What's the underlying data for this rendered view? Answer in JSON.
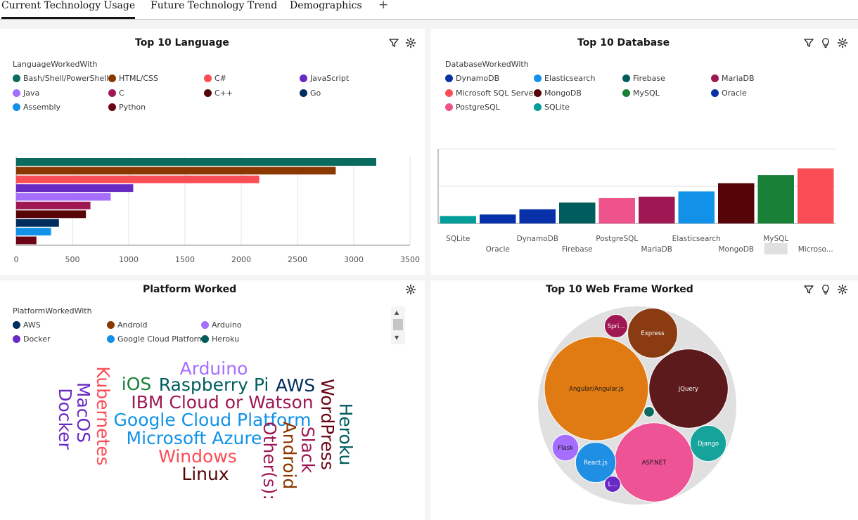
{
  "tabs": [
    {
      "label": "Current Technology Usage",
      "active": true
    },
    {
      "label": "Future Technology Trend",
      "active": false
    },
    {
      "label": "Demographics",
      "active": false
    }
  ],
  "add_tab_label": "+",
  "panels": {
    "language": {
      "title": "Top 10 Language",
      "legend_title": "LanguageWorkedWith",
      "icons": [
        "filter-icon",
        "settings-icon"
      ]
    },
    "database": {
      "title": "Top 10  Database",
      "legend_title": "DatabaseWorkedWith",
      "icons": [
        "filter-icon",
        "lightbulb-icon",
        "settings-icon"
      ]
    },
    "platform": {
      "title": "Platform Worked",
      "legend_title": "PlatformWorkedWith",
      "icons": [
        "settings-icon"
      ]
    },
    "webframe": {
      "title": "Top 10 Web Frame Worked",
      "icons": [
        "filter-icon",
        "lightbulb-icon",
        "settings-icon"
      ]
    }
  },
  "legends": {
    "language": [
      {
        "label": "Bash/Shell/PowerShell",
        "color": "#0b6b5e"
      },
      {
        "label": "HTML/CSS",
        "color": "#8a3800"
      },
      {
        "label": "C#",
        "color": "#fa4d56"
      },
      {
        "label": "JavaScript",
        "color": "#6929c4"
      },
      {
        "label": "Java",
        "color": "#a56eff"
      },
      {
        "label": "C",
        "color": "#9f1853"
      },
      {
        "label": "C++",
        "color": "#570408"
      },
      {
        "label": "Go",
        "color": "#002d5c"
      },
      {
        "label": "Assembly",
        "color": "#1192e8"
      },
      {
        "label": "Python",
        "color": "#6b0516"
      }
    ],
    "database": [
      {
        "label": "DynamoDB",
        "color": "#0830a8"
      },
      {
        "label": "Elasticsearch",
        "color": "#1192e8"
      },
      {
        "label": "Firebase",
        "color": "#005d5d"
      },
      {
        "label": "MariaDB",
        "color": "#9f1853"
      },
      {
        "label": "Microsoft SQL Server",
        "color": "#fa4d56"
      },
      {
        "label": "MongoDB",
        "color": "#570408"
      },
      {
        "label": "MySQL",
        "color": "#198038"
      },
      {
        "label": "Oracle",
        "color": "#0830a8"
      },
      {
        "label": "PostgreSQL",
        "color": "#ee538b"
      },
      {
        "label": "SQLite",
        "color": "#009d9a"
      }
    ],
    "platform": [
      {
        "label": "AWS",
        "color": "#002d5c"
      },
      {
        "label": "Android",
        "color": "#8a3800"
      },
      {
        "label": "Arduino",
        "color": "#a56eff"
      },
      {
        "label": "Docker",
        "color": "#6929c4"
      },
      {
        "label": "Google Cloud Platform",
        "color": "#1192e8"
      },
      {
        "label": "Heroku",
        "color": "#005d5d"
      }
    ]
  },
  "chart_data": [
    {
      "type": "bar",
      "orientation": "horizontal",
      "id": "language",
      "categories": [
        "Bash/Shell/PowerShell",
        "HTML/CSS",
        "C#",
        "JavaScript",
        "Java",
        "C",
        "C++",
        "Go",
        "Assembly",
        "Python"
      ],
      "values": [
        3200,
        2840,
        2160,
        1040,
        840,
        660,
        620,
        380,
        310,
        180
      ],
      "colors": [
        "#0b6b5e",
        "#8a3800",
        "#fa4d56",
        "#6929c4",
        "#a56eff",
        "#9f1853",
        "#570408",
        "#002d5c",
        "#1192e8",
        "#6b0516"
      ],
      "xlim": [
        0,
        3500
      ],
      "xticks": [
        "0",
        "500",
        "1000",
        "1500",
        "2000",
        "2500",
        "3000",
        "3500"
      ],
      "grid": true
    },
    {
      "type": "bar",
      "id": "database",
      "categories": [
        "SQLite",
        "Oracle",
        "DynamoDB",
        "Firebase",
        "PostgreSQL",
        "MariaDB",
        "Elasticsearch",
        "MongoDB",
        "MySQL",
        "Microso..."
      ],
      "values": [
        10,
        12,
        19,
        28,
        34,
        36,
        43,
        54,
        65,
        74
      ],
      "colors": [
        "#009d9a",
        "#0830a8",
        "#0830a8",
        "#005d5d",
        "#ee538b",
        "#9f1853",
        "#1192e8",
        "#570408",
        "#198038",
        "#fa4d56"
      ],
      "ylim": [
        0,
        100
      ],
      "grid": true
    },
    {
      "type": "wordcloud",
      "id": "platform",
      "words": [
        {
          "text": "Arduino",
          "color": "#a56eff"
        },
        {
          "text": "iOS",
          "color": "#198038"
        },
        {
          "text": "Raspberry Pi",
          "color": "#005d5d"
        },
        {
          "text": "AWS",
          "color": "#002d5c"
        },
        {
          "text": "IBM Cloud or Watson",
          "color": "#9f1853"
        },
        {
          "text": "Google Cloud Platform",
          "color": "#1192e8"
        },
        {
          "text": "Microsoft Azure",
          "color": "#1192e8"
        },
        {
          "text": "Windows",
          "color": "#fa4d56"
        },
        {
          "text": "Linux",
          "color": "#570408"
        },
        {
          "text": "Kubernetes",
          "color": "#fa4d56"
        },
        {
          "text": "MacOS",
          "color": "#6929c4"
        },
        {
          "text": "Docker",
          "color": "#6929c4"
        },
        {
          "text": "Other(s):",
          "color": "#9f1853"
        },
        {
          "text": "Android",
          "color": "#8a3800"
        },
        {
          "text": "Slack",
          "color": "#9f1853"
        },
        {
          "text": "WordPress",
          "color": "#6b0516"
        },
        {
          "text": "Heroku",
          "color": "#005d5d"
        }
      ]
    },
    {
      "type": "bubble",
      "id": "webframe",
      "items": [
        {
          "label": "Angular/Angular.js",
          "value": 100,
          "color": "#e07b14"
        },
        {
          "label": "ASP.NET",
          "value": 58,
          "color": "#ee5396"
        },
        {
          "label": "jQuery",
          "value": 58,
          "color": "#5c1a1d"
        },
        {
          "label": "Express",
          "value": 23,
          "color": "#8a3b12"
        },
        {
          "label": "React.js",
          "value": 15,
          "color": "#1f8fe3"
        },
        {
          "label": "Django",
          "value": 12,
          "color": "#15a39b"
        },
        {
          "label": "Flask",
          "value": 6.5,
          "color": "#a56eff"
        },
        {
          "label": "Spri...",
          "value": 5,
          "color": "#9f1853"
        },
        {
          "label": "L...",
          "value": 2.4,
          "color": "#6929c4"
        },
        {
          "label": "",
          "value": 1,
          "color": "#0b6b5e"
        }
      ]
    }
  ]
}
